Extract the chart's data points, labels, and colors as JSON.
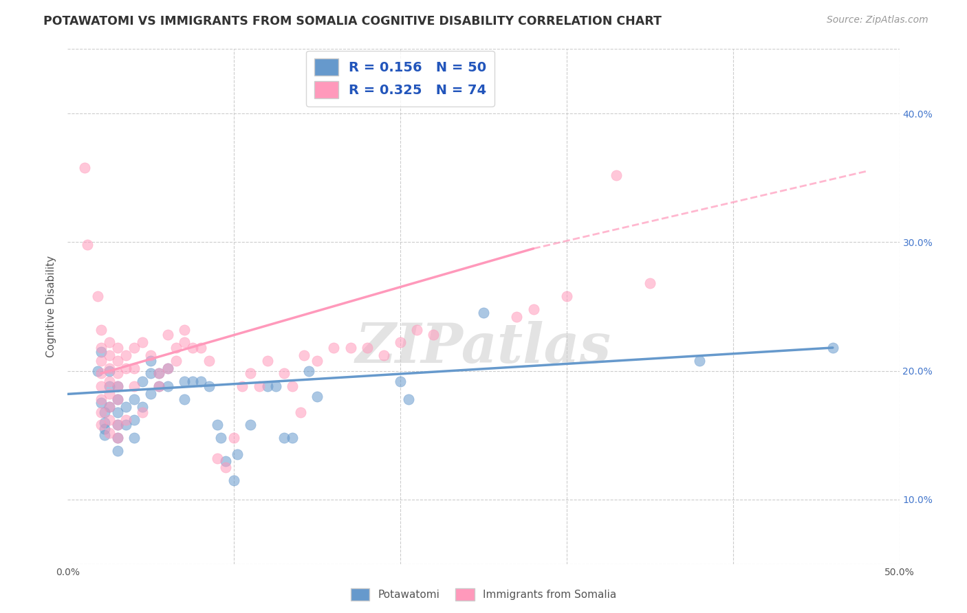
{
  "title": "POTAWATOMI VS IMMIGRANTS FROM SOMALIA COGNITIVE DISABILITY CORRELATION CHART",
  "source": "Source: ZipAtlas.com",
  "ylabel": "Cognitive Disability",
  "xlim": [
    0.0,
    0.5
  ],
  "ylim": [
    0.05,
    0.45
  ],
  "blue_color": "#6699CC",
  "pink_color": "#FF99BB",
  "blue_scatter": [
    [
      0.018,
      0.2
    ],
    [
      0.02,
      0.215
    ],
    [
      0.02,
      0.175
    ],
    [
      0.022,
      0.168
    ],
    [
      0.022,
      0.16
    ],
    [
      0.022,
      0.155
    ],
    [
      0.022,
      0.15
    ],
    [
      0.025,
      0.2
    ],
    [
      0.025,
      0.188
    ],
    [
      0.025,
      0.172
    ],
    [
      0.03,
      0.188
    ],
    [
      0.03,
      0.178
    ],
    [
      0.03,
      0.168
    ],
    [
      0.03,
      0.158
    ],
    [
      0.03,
      0.148
    ],
    [
      0.03,
      0.138
    ],
    [
      0.035,
      0.172
    ],
    [
      0.035,
      0.158
    ],
    [
      0.04,
      0.178
    ],
    [
      0.04,
      0.162
    ],
    [
      0.04,
      0.148
    ],
    [
      0.045,
      0.192
    ],
    [
      0.045,
      0.172
    ],
    [
      0.05,
      0.208
    ],
    [
      0.05,
      0.198
    ],
    [
      0.05,
      0.182
    ],
    [
      0.055,
      0.198
    ],
    [
      0.055,
      0.188
    ],
    [
      0.06,
      0.202
    ],
    [
      0.06,
      0.188
    ],
    [
      0.07,
      0.192
    ],
    [
      0.07,
      0.178
    ],
    [
      0.075,
      0.192
    ],
    [
      0.08,
      0.192
    ],
    [
      0.085,
      0.188
    ],
    [
      0.09,
      0.158
    ],
    [
      0.092,
      0.148
    ],
    [
      0.095,
      0.13
    ],
    [
      0.1,
      0.115
    ],
    [
      0.102,
      0.135
    ],
    [
      0.11,
      0.158
    ],
    [
      0.12,
      0.188
    ],
    [
      0.125,
      0.188
    ],
    [
      0.13,
      0.148
    ],
    [
      0.135,
      0.148
    ],
    [
      0.145,
      0.2
    ],
    [
      0.15,
      0.18
    ],
    [
      0.2,
      0.192
    ],
    [
      0.205,
      0.178
    ],
    [
      0.25,
      0.245
    ],
    [
      0.38,
      0.208
    ],
    [
      0.46,
      0.218
    ]
  ],
  "pink_scatter": [
    [
      0.01,
      0.358
    ],
    [
      0.012,
      0.298
    ],
    [
      0.018,
      0.258
    ],
    [
      0.02,
      0.232
    ],
    [
      0.02,
      0.218
    ],
    [
      0.02,
      0.208
    ],
    [
      0.02,
      0.198
    ],
    [
      0.02,
      0.188
    ],
    [
      0.02,
      0.178
    ],
    [
      0.02,
      0.168
    ],
    [
      0.02,
      0.158
    ],
    [
      0.025,
      0.222
    ],
    [
      0.025,
      0.212
    ],
    [
      0.025,
      0.202
    ],
    [
      0.025,
      0.192
    ],
    [
      0.025,
      0.182
    ],
    [
      0.025,
      0.172
    ],
    [
      0.025,
      0.162
    ],
    [
      0.025,
      0.152
    ],
    [
      0.03,
      0.218
    ],
    [
      0.03,
      0.208
    ],
    [
      0.03,
      0.198
    ],
    [
      0.03,
      0.188
    ],
    [
      0.03,
      0.178
    ],
    [
      0.03,
      0.158
    ],
    [
      0.03,
      0.148
    ],
    [
      0.035,
      0.212
    ],
    [
      0.035,
      0.202
    ],
    [
      0.035,
      0.162
    ],
    [
      0.04,
      0.218
    ],
    [
      0.04,
      0.202
    ],
    [
      0.04,
      0.188
    ],
    [
      0.045,
      0.222
    ],
    [
      0.045,
      0.168
    ],
    [
      0.05,
      0.212
    ],
    [
      0.055,
      0.198
    ],
    [
      0.055,
      0.188
    ],
    [
      0.06,
      0.228
    ],
    [
      0.06,
      0.202
    ],
    [
      0.065,
      0.218
    ],
    [
      0.065,
      0.208
    ],
    [
      0.07,
      0.232
    ],
    [
      0.07,
      0.222
    ],
    [
      0.075,
      0.218
    ],
    [
      0.08,
      0.218
    ],
    [
      0.085,
      0.208
    ],
    [
      0.09,
      0.132
    ],
    [
      0.095,
      0.125
    ],
    [
      0.1,
      0.148
    ],
    [
      0.105,
      0.188
    ],
    [
      0.11,
      0.198
    ],
    [
      0.115,
      0.188
    ],
    [
      0.12,
      0.208
    ],
    [
      0.13,
      0.198
    ],
    [
      0.135,
      0.188
    ],
    [
      0.14,
      0.168
    ],
    [
      0.142,
      0.212
    ],
    [
      0.15,
      0.208
    ],
    [
      0.16,
      0.218
    ],
    [
      0.17,
      0.218
    ],
    [
      0.18,
      0.218
    ],
    [
      0.19,
      0.212
    ],
    [
      0.2,
      0.222
    ],
    [
      0.21,
      0.232
    ],
    [
      0.22,
      0.228
    ],
    [
      0.27,
      0.242
    ],
    [
      0.28,
      0.248
    ],
    [
      0.3,
      0.258
    ],
    [
      0.33,
      0.352
    ],
    [
      0.35,
      0.268
    ]
  ],
  "blue_line": {
    "x0": 0.0,
    "x1": 0.46,
    "y0": 0.182,
    "y1": 0.218
  },
  "blue_line_dashed": false,
  "pink_line_solid": {
    "x0": 0.02,
    "x1": 0.28,
    "y0": 0.198,
    "y1": 0.295
  },
  "pink_line_dashed": {
    "x0": 0.28,
    "x1": 0.48,
    "y0": 0.295,
    "y1": 0.355
  },
  "watermark": "ZIPatlas",
  "background_color": "#FFFFFF",
  "grid_color": "#CCCCCC"
}
